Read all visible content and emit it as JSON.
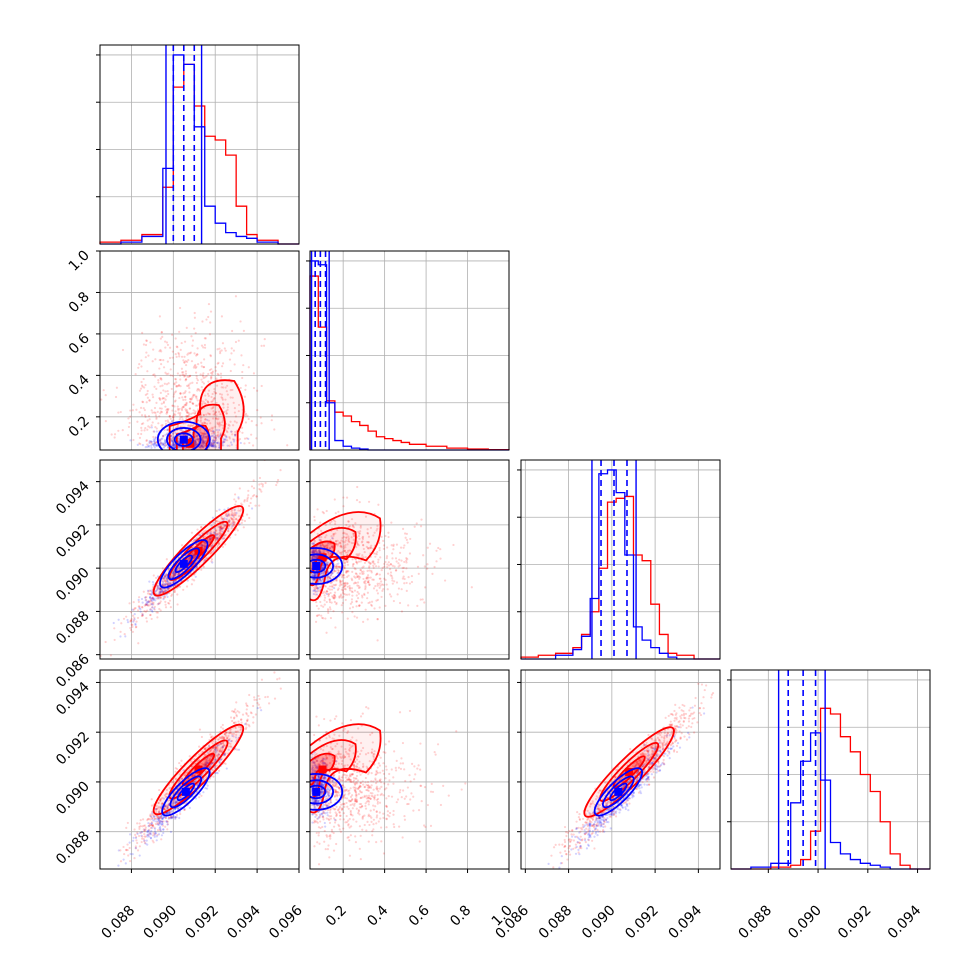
{
  "colors": {
    "series_a": "#ff0000",
    "series_b": "#0000ff",
    "grid": "#b0b0b0",
    "frame": "#000000"
  },
  "chart_data": {
    "type": "corner",
    "grid": true,
    "legend": "none",
    "parameters": [
      {
        "range": [
          0.0865,
          0.096
        ],
        "ticks": [
          "0.088",
          "0.090",
          "0.092",
          "0.094",
          "0.096"
        ],
        "tick_values": [
          0.088,
          0.09,
          0.092,
          0.094,
          0.096
        ]
      },
      {
        "range": [
          0.04,
          1.0
        ],
        "ticks": [
          "0.2",
          "0.4",
          "0.6",
          "0.8",
          "1.0"
        ],
        "tick_values": [
          0.2,
          0.4,
          0.6,
          0.8,
          1.0
        ]
      },
      {
        "range": [
          0.0858,
          0.095
        ],
        "ticks": [
          "0.086",
          "0.088",
          "0.090",
          "0.092",
          "0.094"
        ],
        "tick_values": [
          0.086,
          0.088,
          0.09,
          0.092,
          0.094
        ]
      },
      {
        "range": [
          0.0865,
          0.0945
        ],
        "ticks": [
          "0.088",
          "0.090",
          "0.092",
          "0.094"
        ],
        "tick_values": [
          0.088,
          0.09,
          0.092,
          0.094
        ]
      }
    ],
    "row_tick_labels": [
      {
        "row": 1,
        "param": 1,
        "ticks": [
          "0.2",
          "0.4",
          "0.6",
          "0.8",
          "1.0"
        ]
      },
      {
        "row": 2,
        "param": 2,
        "ticks": [
          "0.088",
          "0.090",
          "0.092",
          "0.094"
        ],
        "tick_values": [
          0.088,
          0.09,
          0.092,
          0.094
        ],
        "extra": [
          "0.086"
        ]
      },
      {
        "row": 3,
        "param": 3,
        "ticks": [
          "0.088",
          "0.090",
          "0.092",
          "0.094"
        ]
      }
    ],
    "series": [
      {
        "color": "red",
        "hist": [
          {
            "param": 0,
            "edges": [
              0.0865,
              0.0875,
              0.0885,
              0.0895,
              0.09,
              0.0905,
              0.091,
              0.0915,
              0.092,
              0.0925,
              0.093,
              0.0935,
              0.094,
              0.095,
              0.096
            ],
            "counts": [
              0.01,
              0.02,
              0.05,
              0.3,
              0.83,
              0.95,
              0.73,
              0.57,
              0.55,
              0.47,
              0.2,
              0.05,
              0.02,
              0.0
            ]
          },
          {
            "param": 1,
            "edges": [
              0.04,
              0.08,
              0.12,
              0.16,
              0.2,
              0.24,
              0.28,
              0.32,
              0.36,
              0.4,
              0.44,
              0.48,
              0.52,
              0.6,
              0.7,
              0.8,
              0.9,
              1.0
            ],
            "counts": [
              0.92,
              0.65,
              0.26,
              0.2,
              0.18,
              0.15,
              0.13,
              0.1,
              0.07,
              0.06,
              0.05,
              0.04,
              0.03,
              0.02,
              0.01,
              0.005,
              0.002
            ]
          },
          {
            "param": 2,
            "edges": [
              0.0858,
              0.0866,
              0.0874,
              0.0882,
              0.0886,
              0.089,
              0.0894,
              0.0898,
              0.0902,
              0.0906,
              0.091,
              0.0914,
              0.0918,
              0.0922,
              0.0926,
              0.093,
              0.0938,
              0.095
            ],
            "counts": [
              0.01,
              0.02,
              0.03,
              0.06,
              0.13,
              0.25,
              0.48,
              0.83,
              0.85,
              0.86,
              0.55,
              0.52,
              0.29,
              0.13,
              0.03,
              0.02,
              0.0
            ]
          },
          {
            "param": 3,
            "edges": [
              0.0865,
              0.0873,
              0.0881,
              0.0889,
              0.0893,
              0.0897,
              0.0901,
              0.0905,
              0.0909,
              0.0913,
              0.0917,
              0.0921,
              0.0925,
              0.0929,
              0.0933,
              0.0937,
              0.0945
            ],
            "counts": [
              0.0,
              0.0,
              0.01,
              0.02,
              0.05,
              0.2,
              0.85,
              0.82,
              0.7,
              0.62,
              0.5,
              0.41,
              0.25,
              0.08,
              0.02,
              0.0
            ]
          }
        ],
        "quantiles": []
      },
      {
        "color": "blue",
        "hist": [
          {
            "param": 0,
            "edges": [
              0.0865,
              0.0875,
              0.0885,
              0.0895,
              0.09,
              0.0905,
              0.091,
              0.0915,
              0.092,
              0.0925,
              0.093,
              0.0935,
              0.094,
              0.095,
              0.096
            ],
            "counts": [
              0.0,
              0.01,
              0.04,
              0.4,
              1.0,
              0.95,
              0.62,
              0.2,
              0.11,
              0.06,
              0.04,
              0.03,
              0.01,
              0.0
            ]
          },
          {
            "param": 1,
            "edges": [
              0.04,
              0.08,
              0.12,
              0.16,
              0.2,
              0.24,
              0.28,
              0.32,
              0.36,
              0.4,
              0.44,
              0.48,
              0.52,
              0.6,
              0.7,
              0.8,
              0.9,
              1.0
            ],
            "counts": [
              1.0,
              0.98,
              0.25,
              0.05,
              0.02,
              0.01,
              0.005,
              0.0,
              0.0,
              0.0,
              0.0,
              0.0,
              0.0,
              0.0,
              0.0,
              0.0,
              0.0
            ]
          },
          {
            "param": 2,
            "edges": [
              0.0858,
              0.0866,
              0.0874,
              0.0882,
              0.0886,
              0.089,
              0.0894,
              0.0898,
              0.0902,
              0.0906,
              0.091,
              0.0914,
              0.0918,
              0.0922,
              0.0926,
              0.093,
              0.0938,
              0.095
            ],
            "counts": [
              0.0,
              0.0,
              0.02,
              0.05,
              0.12,
              0.32,
              0.98,
              1.0,
              0.88,
              0.55,
              0.17,
              0.1,
              0.06,
              0.03,
              0.01,
              0.0,
              0.0
            ]
          },
          {
            "param": 3,
            "edges": [
              0.0865,
              0.0873,
              0.0881,
              0.0889,
              0.0893,
              0.0897,
              0.0901,
              0.0905,
              0.0909,
              0.0913,
              0.0917,
              0.0921,
              0.0925,
              0.0929,
              0.0933,
              0.0937,
              0.0945
            ],
            "counts": [
              0.0,
              0.01,
              0.03,
              0.35,
              0.57,
              0.72,
              0.47,
              0.14,
              0.08,
              0.05,
              0.03,
              0.02,
              0.01,
              0.0,
              0.0,
              0.0
            ]
          }
        ],
        "quantiles": [
          {
            "param": 0,
            "lo": 0.09,
            "med": 0.0905,
            "hi": 0.091
          },
          {
            "param": 1,
            "lo": 0.065,
            "med": 0.09,
            "hi": 0.115
          },
          {
            "param": 2,
            "lo": 0.0895,
            "med": 0.0901,
            "hi": 0.0907
          },
          {
            "param": 3,
            "lo": 0.0888,
            "med": 0.0894,
            "hi": 0.0899
          }
        ]
      }
    ],
    "contours_2d": [
      {
        "row": 1,
        "col": 0,
        "series": "red",
        "center": [
          0.0908,
          0.07
        ],
        "shape": "lobe-up"
      },
      {
        "row": 1,
        "col": 0,
        "series": "blue",
        "center": [
          0.0905,
          0.09
        ],
        "shape": "ellipse"
      },
      {
        "row": 2,
        "col": 0,
        "series": "red",
        "center": [
          0.0912,
          0.0908
        ],
        "shape": "diagonal"
      },
      {
        "row": 2,
        "col": 0,
        "series": "blue",
        "center": [
          0.0905,
          0.0902
        ],
        "shape": "ellipse-diag"
      },
      {
        "row": 2,
        "col": 1,
        "series": "red",
        "center": [
          0.1,
          0.0905
        ],
        "shape": "lobe-right"
      },
      {
        "row": 2,
        "col": 1,
        "series": "blue",
        "center": [
          0.07,
          0.0901
        ],
        "shape": "ellipse"
      },
      {
        "row": 3,
        "col": 0,
        "series": "red",
        "center": [
          0.0912,
          0.0905
        ],
        "shape": "diagonal"
      },
      {
        "row": 3,
        "col": 0,
        "series": "blue",
        "center": [
          0.0906,
          0.0896
        ],
        "shape": "ellipse-diag"
      },
      {
        "row": 3,
        "col": 1,
        "series": "red",
        "center": [
          0.1,
          0.0905
        ],
        "shape": "lobe-right"
      },
      {
        "row": 3,
        "col": 1,
        "series": "blue",
        "center": [
          0.07,
          0.0896
        ],
        "shape": "ellipse"
      },
      {
        "row": 3,
        "col": 2,
        "series": "red",
        "center": [
          0.0908,
          0.0904
        ],
        "shape": "diagonal"
      },
      {
        "row": 3,
        "col": 2,
        "series": "blue",
        "center": [
          0.0903,
          0.0896
        ],
        "shape": "ellipse-diag"
      }
    ]
  }
}
